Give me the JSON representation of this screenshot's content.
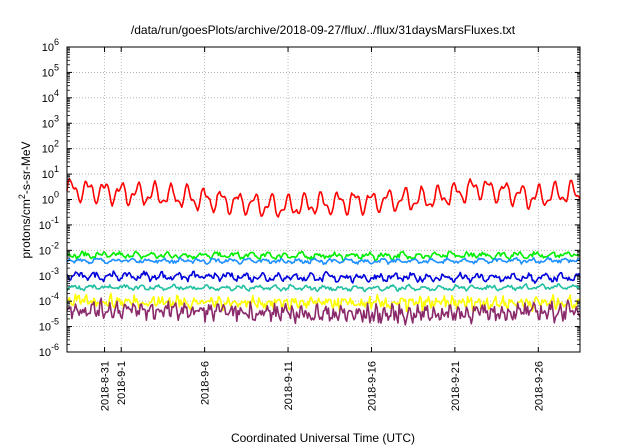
{
  "chart_data": {
    "type": "line",
    "title": "/data/run/goesPlots/archive/2018-09-27/flux/../flux/31daysMarsFluxes.txt",
    "xlabel": "Coordinated Universal Time (UTC)",
    "ylabel": {
      "prefix": "protons/cm",
      "sup": "2",
      "suffix": "-s-sr-MeV"
    },
    "x_range": [
      "2018-08-28T18:00",
      "2018-09-28T12:00"
    ],
    "y_scale": "log",
    "ylim": [
      1e-06,
      1000000.0
    ],
    "grid": true,
    "x_ticks": [
      {
        "date": "2018-08-31",
        "label": "2018-8-31"
      },
      {
        "date": "2018-09-01",
        "label": "2018-9-1"
      },
      {
        "date": "2018-09-06",
        "label": "2018-9-6"
      },
      {
        "date": "2018-09-11",
        "label": "2018-9-11"
      },
      {
        "date": "2018-09-16",
        "label": "2018-9-16"
      },
      {
        "date": "2018-09-21",
        "label": "2018-9-21"
      },
      {
        "date": "2018-09-26",
        "label": "2018-9-26"
      }
    ],
    "y_ticks": [
      {
        "value": 1e-06,
        "base": "10",
        "exp": "-6"
      },
      {
        "value": 1e-05,
        "base": "10",
        "exp": "-5"
      },
      {
        "value": 0.0001,
        "base": "10",
        "exp": "-4"
      },
      {
        "value": 0.001,
        "base": "10",
        "exp": "-3"
      },
      {
        "value": 0.01,
        "base": "10",
        "exp": "-2"
      },
      {
        "value": 0.1,
        "base": "10",
        "exp": "-1"
      },
      {
        "value": 1,
        "base": "10",
        "exp": "0"
      },
      {
        "value": 10.0,
        "base": "10",
        "exp": "1"
      },
      {
        "value": 100.0,
        "base": "10",
        "exp": "2"
      },
      {
        "value": 1000.0,
        "base": "10",
        "exp": "3"
      },
      {
        "value": 10000.0,
        "base": "10",
        "exp": "4"
      },
      {
        "value": 100000.0,
        "base": "10",
        "exp": "5"
      },
      {
        "value": 1000000.0,
        "base": "10",
        "exp": "6"
      }
    ],
    "series": [
      {
        "color": "#ff0000",
        "level": 1.5,
        "swing": 0.35,
        "period_days": 1.0,
        "noise": 0.05,
        "x": [
          "2018-08-28",
          "2018-09-04",
          "2018-09-10",
          "2018-09-14",
          "2018-09-19",
          "2018-09-22",
          "2018-09-25",
          "2018-09-28"
        ],
        "y": [
          2.5,
          1.3,
          0.5,
          0.8,
          1.0,
          3.0,
          1.2,
          2.0
        ]
      },
      {
        "color": "#00ee00",
        "level": 0.0065,
        "swing": 0.08,
        "period_days": 1.0,
        "noise": 0.08,
        "x": [
          "2018-08-28",
          "2018-09-15",
          "2018-09-28"
        ],
        "y": [
          0.0065,
          0.006,
          0.0068
        ]
      },
      {
        "color": "#1e90ff",
        "level": 0.004,
        "swing": 0.06,
        "period_days": 1.0,
        "noise": 0.06,
        "x": [
          "2018-08-28",
          "2018-09-15",
          "2018-09-28"
        ],
        "y": [
          0.004,
          0.0037,
          0.004
        ]
      },
      {
        "color": "#0000dd",
        "level": 0.0009,
        "swing": 0.1,
        "period_days": 1.0,
        "noise": 0.1,
        "x": [
          "2018-08-28",
          "2018-09-15",
          "2018-09-28"
        ],
        "y": [
          0.001,
          0.00085,
          0.0008
        ]
      },
      {
        "color": "#20c0a0",
        "level": 0.00035,
        "swing": 0.06,
        "period_days": 1.0,
        "noise": 0.06,
        "x": [
          "2018-08-28",
          "2018-09-15",
          "2018-09-28"
        ],
        "y": [
          0.00035,
          0.00032,
          0.00036
        ]
      },
      {
        "color": "#ffff00",
        "level": 9e-05,
        "swing": 0.12,
        "period_days": 0.5,
        "noise": 0.18,
        "x": [
          "2018-08-28",
          "2018-09-15",
          "2018-09-28"
        ],
        "y": [
          0.0001,
          8e-05,
          9e-05
        ]
      },
      {
        "color": "#8b2a6b",
        "level": 4e-05,
        "swing": 0.15,
        "period_days": 0.5,
        "noise": 0.25,
        "x": [
          "2018-08-28",
          "2018-09-15",
          "2018-09-28"
        ],
        "y": [
          5e-05,
          3e-05,
          4e-05
        ]
      }
    ]
  }
}
